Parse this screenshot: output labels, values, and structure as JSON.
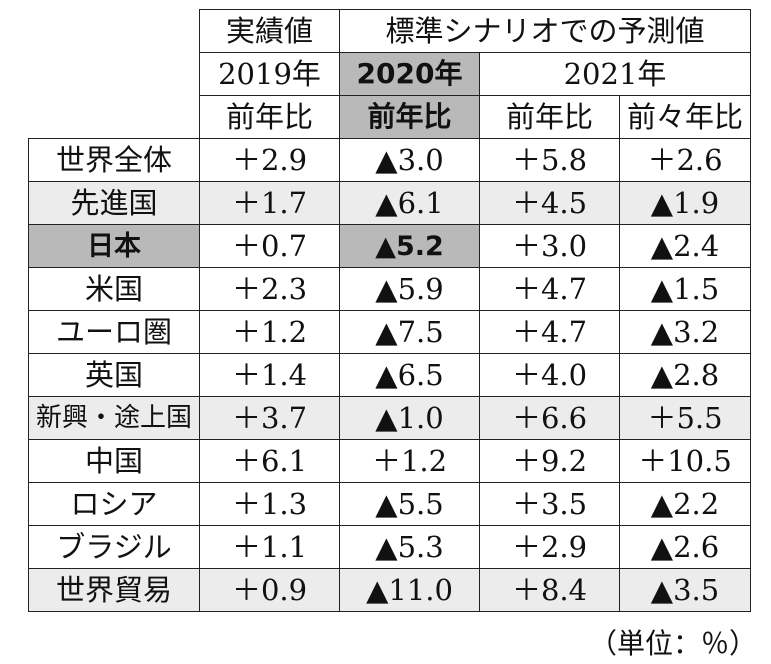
{
  "header": {
    "group_actual": "実績値",
    "group_forecast": "標準シナリオでの予測値",
    "years": [
      "2019年",
      "2020年",
      "2021年"
    ],
    "measures": [
      "前年比",
      "前年比",
      "前年比",
      "前々年比"
    ]
  },
  "rows": [
    {
      "label": "世界全体",
      "values": [
        "＋2.9",
        "▲3.0",
        "＋5.8",
        "＋2.6"
      ],
      "shaded": false
    },
    {
      "label": "先進国",
      "values": [
        "＋1.7",
        "▲6.1",
        "＋4.5",
        "▲1.9"
      ],
      "shaded": true
    },
    {
      "label": "日本",
      "values": [
        "＋0.7",
        "▲5.2",
        "＋3.0",
        "▲2.4"
      ],
      "shaded": false,
      "highlight": true
    },
    {
      "label": "米国",
      "values": [
        "＋2.3",
        "▲5.9",
        "＋4.7",
        "▲1.5"
      ],
      "shaded": false
    },
    {
      "label": "ユーロ圏",
      "values": [
        "＋1.2",
        "▲7.5",
        "＋4.7",
        "▲3.2"
      ],
      "shaded": false
    },
    {
      "label": "英国",
      "values": [
        "＋1.4",
        "▲6.5",
        "＋4.0",
        "▲2.8"
      ],
      "shaded": false
    },
    {
      "label": "新興・途上国",
      "values": [
        "＋3.7",
        "▲1.0",
        "＋6.6",
        "＋5.5"
      ],
      "shaded": true
    },
    {
      "label": "中国",
      "values": [
        "＋6.1",
        "＋1.2",
        "＋9.2",
        "＋10.5"
      ],
      "shaded": false
    },
    {
      "label": "ロシア",
      "values": [
        "＋1.3",
        "▲5.5",
        "＋3.5",
        "▲2.2"
      ],
      "shaded": false
    },
    {
      "label": "ブラジル",
      "values": [
        "＋1.1",
        "▲5.3",
        "＋2.9",
        "▲2.6"
      ],
      "shaded": false
    },
    {
      "label": "世界貿易",
      "values": [
        "＋0.9",
        "▲11.0",
        "＋8.4",
        "▲3.5"
      ],
      "shaded": true
    }
  ],
  "unit_note": "（単位：％）",
  "colors": {
    "row_shade": "#ececec",
    "highlight": "#b9b9b9",
    "border": "#222222"
  }
}
